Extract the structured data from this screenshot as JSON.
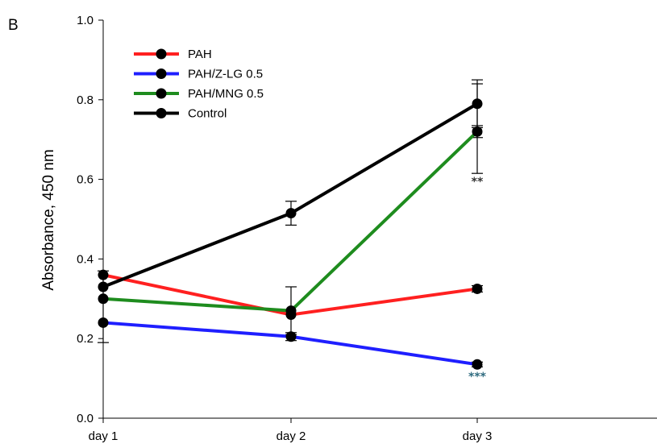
{
  "chart_data": {
    "type": "line",
    "panel_label": "B",
    "title": "",
    "xlabel": "",
    "ylabel": "Absorbance, 450 nm",
    "categories": [
      "day 1",
      "day 2",
      "day 3"
    ],
    "ylim": [
      0.0,
      1.0
    ],
    "yticks": [
      "0.0",
      "0.2",
      "0.4",
      "0.6",
      "0.8",
      "1.0"
    ],
    "grid": false,
    "legend_position": "top-left",
    "series": [
      {
        "name": "PAH",
        "color": "#ff2020",
        "values": [
          0.36,
          0.26,
          0.325
        ],
        "errors": [
          0.0,
          0.0,
          0.008
        ]
      },
      {
        "name": "PAH/Z-LG 0.5",
        "color": "#1f1fff",
        "values": [
          0.24,
          0.205,
          0.135
        ],
        "errors": [
          0.0,
          0.01,
          0.006
        ]
      },
      {
        "name": "PAH/MNG 0.5",
        "color": "#1e8c1e",
        "values": [
          0.3,
          0.27,
          0.72
        ],
        "errors": [
          0.0,
          0.06,
          0.015
        ]
      },
      {
        "name": "Control",
        "color": "#000000",
        "values": [
          0.33,
          0.515,
          0.79
        ],
        "errors": [
          0.0,
          0.03,
          0.06
        ]
      }
    ],
    "extra_errorbars": [
      {
        "x": "day 1",
        "low": 0.19,
        "high": 0.37
      },
      {
        "x": "day 3",
        "low": 0.615,
        "high": 0.84
      }
    ],
    "annotations": [
      {
        "text": "**",
        "x": "day 3",
        "y": 0.585,
        "color": "#333333"
      },
      {
        "text": "***",
        "x": "day 3",
        "y": 0.095,
        "color": "#2f6b7f"
      }
    ]
  }
}
